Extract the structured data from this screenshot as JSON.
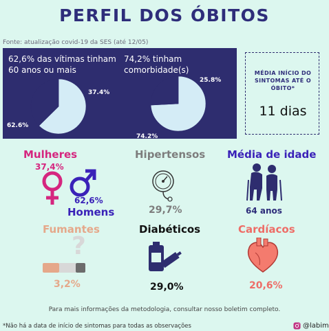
{
  "title": "PERFIL DOS ÓBITOS",
  "source": "Fonte: atualização covid-19 da SES (até 12/05)",
  "colors": {
    "navy": "#2e2d6f",
    "pie_light": "#d4ecf6",
    "pie_dark": "#2e2d6f",
    "magenta": "#d5267f",
    "purple": "#3a22b8",
    "gray": "#7d7d7d",
    "peach": "#e5a88a",
    "coral": "#ee6d67",
    "background": "#dcf7ef"
  },
  "chart_data": [
    {
      "type": "pie",
      "title": "62,6% das vítimas tinham 60 anos ou mais",
      "values": [
        62.6,
        37.4
      ],
      "labels": [
        "62.6%",
        "37.4%"
      ]
    },
    {
      "type": "pie",
      "title": "74,2% tinham comorbidade(s)",
      "values": [
        74.2,
        25.8
      ],
      "labels": [
        "74.2%",
        "25.8%"
      ]
    }
  ],
  "onset": {
    "title": "MÉDIA INÍCIO DO SINTOMAS ATÉ O ÓBITO*",
    "value": "11 dias"
  },
  "stats": {
    "mulheres": {
      "label": "Mulheres",
      "value": "37,4%"
    },
    "homens": {
      "label": "Homens",
      "value": "62,6%"
    },
    "hipertensos": {
      "label": "Hipertensos",
      "value": "29,7%",
      "icon": "blood-pressure-gauge-icon"
    },
    "idade": {
      "label": "Média de idade",
      "value": "64 anos",
      "icon": "elderly-couple-icon"
    },
    "fumantes": {
      "label": "Fumantes",
      "value": "3,2%",
      "icon": "cigarette-icon"
    },
    "diabeticos": {
      "label": "Diabéticos",
      "value": "29,0%",
      "icon": "insulin-syringe-icon"
    },
    "cardiacos": {
      "label": "Cardíacos",
      "value": "20,6%",
      "icon": "heart-icon"
    }
  },
  "footnote": "Para mais informações da metodologia, consultar nosso boletim completo.",
  "bottom_note": "*Não há a data de início de sintomas para todas as observações",
  "instagram": "@labimec"
}
